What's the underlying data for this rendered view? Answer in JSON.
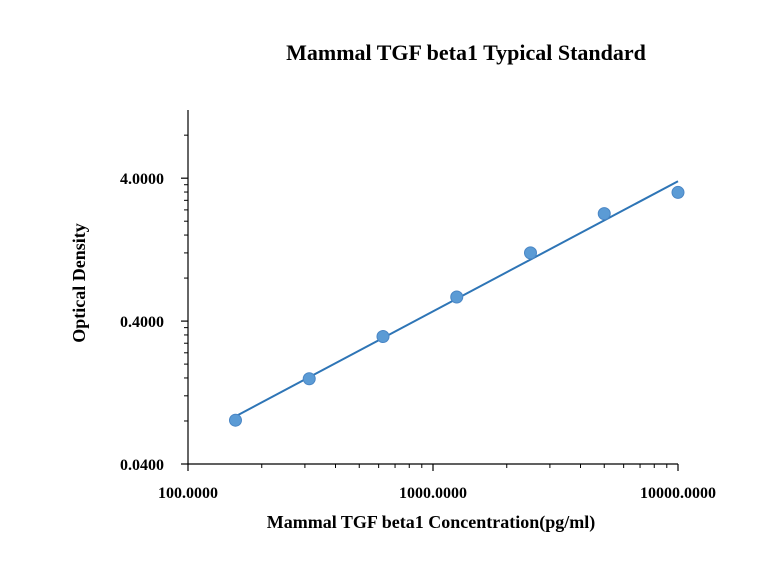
{
  "chart_data": {
    "type": "scatter",
    "title": "Mammal TGF beta1 Typical Standard",
    "xlabel": "Mammal TGF beta1 Concentration(pg/ml)",
    "ylabel": "Optical Density",
    "x_scale": "log",
    "y_scale": "log",
    "xlim": [
      100,
      10000
    ],
    "ylim": [
      0.04,
      12
    ],
    "x_ticks": [
      "100.0000",
      "1000.0000",
      "10000.0000"
    ],
    "y_ticks": [
      "0.0400",
      "0.4000",
      "4.0000"
    ],
    "grid": false,
    "legend": "none",
    "series": [
      {
        "x": [
          156.25,
          312.5,
          625,
          1250,
          2500,
          5000,
          10000
        ],
        "y": [
          0.081,
          0.158,
          0.312,
          0.59,
          1.2,
          2.26,
          3.18
        ],
        "marker_color": "#5b9bd5",
        "trendline": "power",
        "trendline_color": "#2e75b6"
      }
    ]
  }
}
